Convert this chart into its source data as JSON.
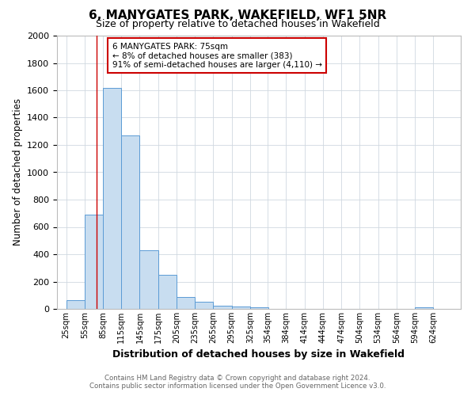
{
  "title": "6, MANYGATES PARK, WAKEFIELD, WF1 5NR",
  "subtitle": "Size of property relative to detached houses in Wakefield",
  "xlabel": "Distribution of detached houses by size in Wakefield",
  "ylabel": "Number of detached properties",
  "bar_labels": [
    "25sqm",
    "55sqm",
    "85sqm",
    "115sqm",
    "145sqm",
    "175sqm",
    "205sqm",
    "235sqm",
    "265sqm",
    "295sqm",
    "325sqm",
    "354sqm",
    "384sqm",
    "414sqm",
    "444sqm",
    "474sqm",
    "504sqm",
    "534sqm",
    "564sqm",
    "594sqm",
    "624sqm"
  ],
  "bar_values": [
    65,
    690,
    1620,
    1270,
    430,
    250,
    85,
    50,
    25,
    15,
    10,
    0,
    0,
    0,
    0,
    0,
    0,
    0,
    0,
    10,
    0
  ],
  "bar_color": "#c8ddf0",
  "bar_edge_color": "#5b9bd5",
  "property_line_x": 75,
  "property_line_color": "#cc0000",
  "annotation_title": "6 MANYGATES PARK: 75sqm",
  "annotation_line1": "← 8% of detached houses are smaller (383)",
  "annotation_line2": "91% of semi-detached houses are larger (4,110) →",
  "annotation_box_edge": "#cc0000",
  "ylim": [
    0,
    2000
  ],
  "yticks": [
    0,
    200,
    400,
    600,
    800,
    1000,
    1200,
    1400,
    1600,
    1800,
    2000
  ],
  "footer_line1": "Contains HM Land Registry data © Crown copyright and database right 2024.",
  "footer_line2": "Contains public sector information licensed under the Open Government Licence v3.0.",
  "background_color": "#ffffff",
  "grid_color": "#d0d8e0",
  "bin_width": 30
}
